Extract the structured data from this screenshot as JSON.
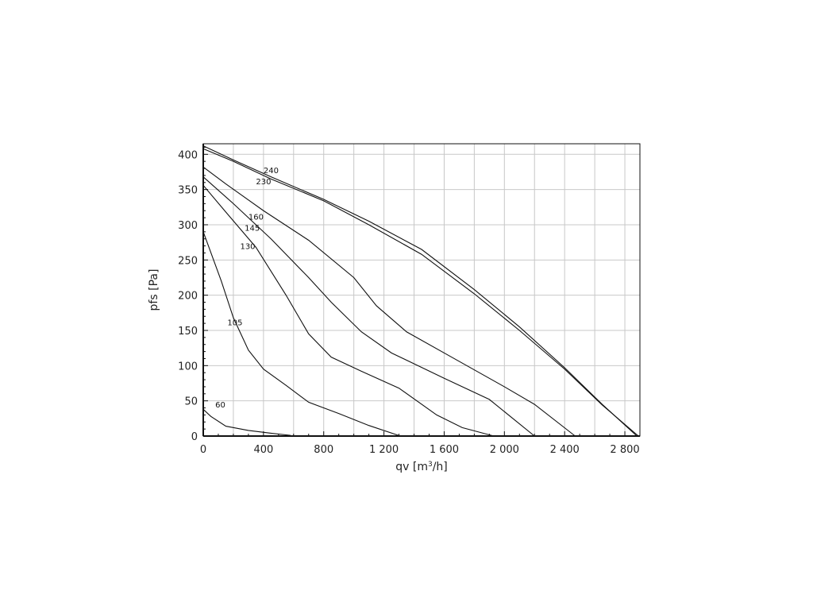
{
  "chart_data": {
    "type": "line",
    "xlabel": "qv [m³/h]",
    "ylabel": "pfs [Pa]",
    "xlim": [
      0,
      2900
    ],
    "ylim": [
      0,
      415
    ],
    "x_ticks": [
      0,
      400,
      800,
      1200,
      1600,
      2000,
      2400,
      2800
    ],
    "x_tick_labels": [
      "0",
      "400",
      "800",
      "1 200",
      "1 600",
      "2 000",
      "2 400",
      "2 800"
    ],
    "y_ticks": [
      0,
      50,
      100,
      150,
      200,
      250,
      300,
      350,
      400
    ],
    "y_tick_labels": [
      "0",
      "50",
      "100",
      "150",
      "200",
      "250",
      "300",
      "350",
      "400"
    ],
    "grid": true,
    "series": [
      {
        "name": "240",
        "label_at": [
          400,
          378
        ],
        "points": [
          [
            0,
            412
          ],
          [
            200,
            392
          ],
          [
            450,
            368
          ],
          [
            800,
            336
          ],
          [
            1100,
            305
          ],
          [
            1450,
            265
          ],
          [
            1800,
            208
          ],
          [
            2100,
            155
          ],
          [
            2400,
            97
          ],
          [
            2650,
            45
          ],
          [
            2880,
            0
          ]
        ]
      },
      {
        "name": "230",
        "label_at": [
          350,
          362
        ],
        "points": [
          [
            0,
            408
          ],
          [
            200,
            390
          ],
          [
            450,
            365
          ],
          [
            800,
            334
          ],
          [
            1100,
            300
          ],
          [
            1450,
            258
          ],
          [
            1800,
            202
          ],
          [
            2100,
            150
          ],
          [
            2400,
            95
          ],
          [
            2650,
            44
          ],
          [
            2890,
            0
          ]
        ]
      },
      {
        "name": "160",
        "label_at": [
          300,
          312
        ],
        "points": [
          [
            0,
            382
          ],
          [
            150,
            358
          ],
          [
            400,
            320
          ],
          [
            700,
            278
          ],
          [
            1000,
            225
          ],
          [
            1150,
            185
          ],
          [
            1350,
            148
          ],
          [
            1650,
            112
          ],
          [
            2000,
            70
          ],
          [
            2200,
            45
          ],
          [
            2470,
            0
          ]
        ]
      },
      {
        "name": "145",
        "label_at": [
          275,
          296
        ],
        "points": [
          [
            0,
            368
          ],
          [
            200,
            330
          ],
          [
            450,
            280
          ],
          [
            700,
            225
          ],
          [
            850,
            190
          ],
          [
            1050,
            148
          ],
          [
            1250,
            118
          ],
          [
            1600,
            82
          ],
          [
            1900,
            52
          ],
          [
            2200,
            0
          ]
        ]
      },
      {
        "name": "130",
        "label_at": [
          245,
          270
        ],
        "points": [
          [
            0,
            356
          ],
          [
            150,
            318
          ],
          [
            350,
            268
          ],
          [
            550,
            200
          ],
          [
            700,
            145
          ],
          [
            850,
            112
          ],
          [
            1050,
            92
          ],
          [
            1300,
            68
          ],
          [
            1550,
            30
          ],
          [
            1720,
            12
          ],
          [
            1930,
            0
          ]
        ]
      },
      {
        "name": "105",
        "label_at": [
          160,
          162
        ],
        "points": [
          [
            0,
            290
          ],
          [
            120,
            220
          ],
          [
            200,
            168
          ],
          [
            300,
            122
          ],
          [
            400,
            95
          ],
          [
            550,
            72
          ],
          [
            700,
            48
          ],
          [
            900,
            32
          ],
          [
            1100,
            15
          ],
          [
            1310,
            0
          ]
        ]
      },
      {
        "name": "60",
        "label_at": [
          80,
          45
        ],
        "points": [
          [
            0,
            38
          ],
          [
            50,
            28
          ],
          [
            150,
            14
          ],
          [
            300,
            8
          ],
          [
            450,
            4
          ],
          [
            580,
            1
          ]
        ]
      }
    ]
  }
}
